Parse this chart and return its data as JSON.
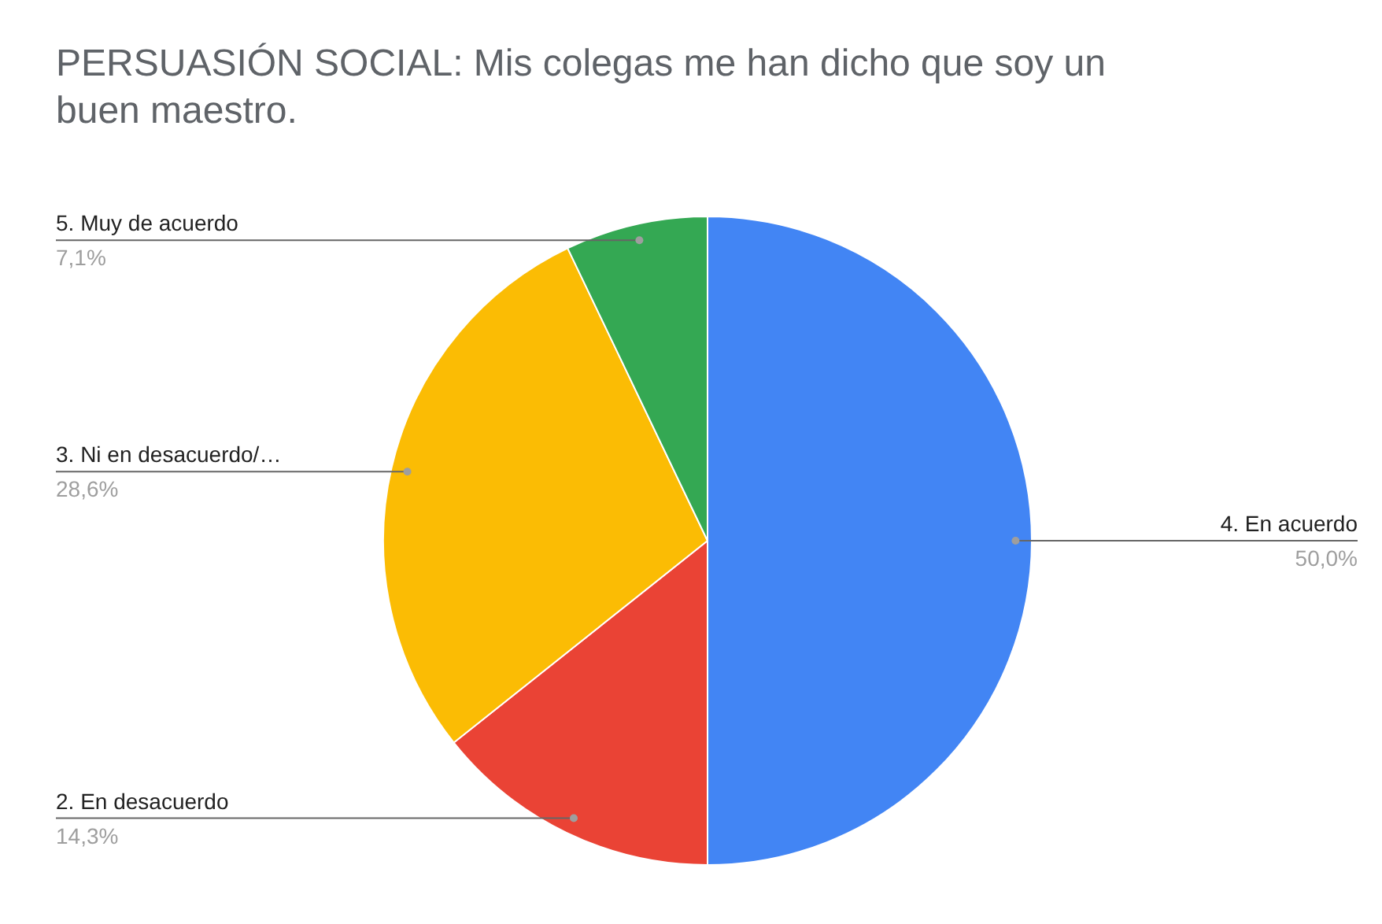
{
  "chart_data": {
    "type": "pie",
    "title": "PERSUASIÓN SOCIAL: Mis colegas me han dicho que soy un buen maestro.",
    "categories": [
      "4. En acuerdo",
      "2. En desacuerdo",
      "3. Ni en desacuerdo/…",
      "5. Muy de acuerdo"
    ],
    "values": [
      50.0,
      14.3,
      28.6,
      7.1
    ],
    "colors": [
      "#4285f4",
      "#ea4335",
      "#fbbc04",
      "#34a853"
    ],
    "value_labels": [
      "50,0%",
      "14,3%",
      "28,6%",
      "7,1%"
    ]
  }
}
